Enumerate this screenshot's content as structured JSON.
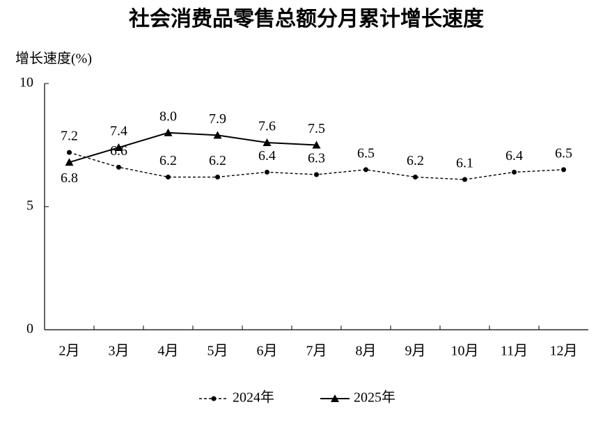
{
  "chart_data": {
    "type": "line",
    "title": "社会消费品零售总额分月累计增长速度",
    "y_label": "增长速度(%)",
    "categories": [
      "2月",
      "3月",
      "4月",
      "5月",
      "6月",
      "7月",
      "8月",
      "9月",
      "10月",
      "11月",
      "12月"
    ],
    "series": [
      {
        "name": "2024年",
        "color": "#000000",
        "style": "dashed",
        "marker": "circle",
        "values": [
          7.2,
          6.6,
          6.2,
          6.2,
          6.4,
          6.3,
          6.5,
          6.2,
          6.1,
          6.4,
          6.5
        ],
        "value_labels": [
          "7.2",
          "6.6",
          "6.2",
          "6.2",
          "6.4",
          "6.3",
          "6.5",
          "6.2",
          "6.1",
          "6.4",
          "6.5"
        ]
      },
      {
        "name": "2025年",
        "color": "#000000",
        "style": "solid",
        "marker": "triangle",
        "values": [
          6.8,
          7.4,
          8.0,
          7.9,
          7.6,
          7.5,
          null,
          null,
          null,
          null,
          null
        ],
        "value_labels": [
          "6.8",
          "7.4",
          "8.0",
          "7.9",
          "7.6",
          "7.5",
          null,
          null,
          null,
          null,
          null
        ]
      }
    ],
    "ylim": [
      0,
      10
    ],
    "yticks": [
      0,
      5,
      10
    ],
    "grid": false,
    "legend": "bottom"
  }
}
